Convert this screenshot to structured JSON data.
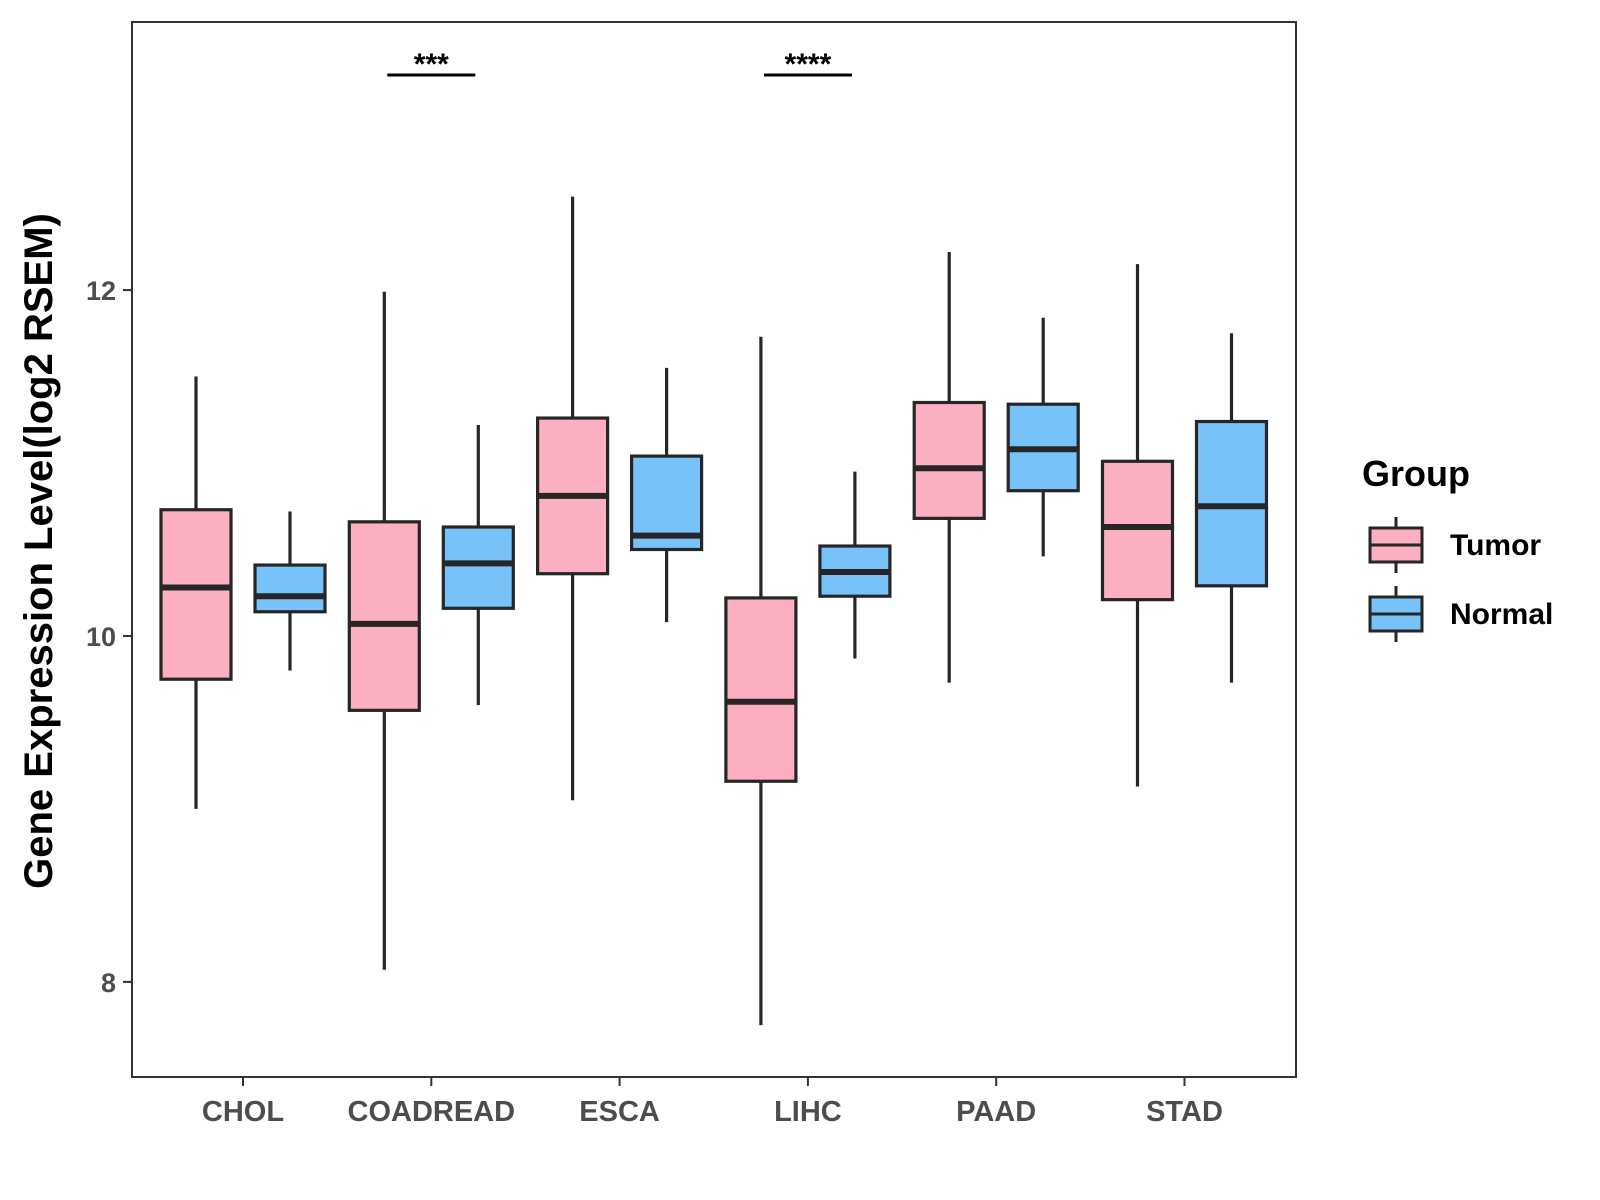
{
  "chart_data": {
    "type": "boxplot",
    "ylabel": "Gene Expression Level(log2 RSEM)",
    "xlabel": "",
    "ylim": [
      7.45,
      13.55
    ],
    "y_ticks": [
      8,
      10,
      12
    ],
    "categories": [
      "CHOL",
      "COADREAD",
      "ESCA",
      "LIHC",
      "PAAD",
      "STAD"
    ],
    "series": [
      {
        "name": "Tumor",
        "color": "#FBAFC0",
        "boxes": [
          {
            "whisker_low": 9.0,
            "q1": 9.75,
            "median": 10.28,
            "q3": 10.73,
            "whisker_high": 11.5
          },
          {
            "whisker_low": 8.07,
            "q1": 9.57,
            "median": 10.07,
            "q3": 10.66,
            "whisker_high": 11.99
          },
          {
            "whisker_low": 9.05,
            "q1": 10.36,
            "median": 10.81,
            "q3": 11.26,
            "whisker_high": 12.54
          },
          {
            "whisker_low": 7.75,
            "q1": 9.16,
            "median": 9.62,
            "q3": 10.22,
            "whisker_high": 11.73
          },
          {
            "whisker_low": 9.73,
            "q1": 10.68,
            "median": 10.97,
            "q3": 11.35,
            "whisker_high": 12.22
          },
          {
            "whisker_low": 9.13,
            "q1": 10.21,
            "median": 10.63,
            "q3": 11.01,
            "whisker_high": 12.15
          }
        ]
      },
      {
        "name": "Normal",
        "color": "#77C2F8",
        "boxes": [
          {
            "whisker_low": 9.8,
            "q1": 10.14,
            "median": 10.23,
            "q3": 10.41,
            "whisker_high": 10.72
          },
          {
            "whisker_low": 9.6,
            "q1": 10.16,
            "median": 10.42,
            "q3": 10.63,
            "whisker_high": 11.22
          },
          {
            "whisker_low": 10.08,
            "q1": 10.5,
            "median": 10.58,
            "q3": 11.04,
            "whisker_high": 11.55
          },
          {
            "whisker_low": 9.87,
            "q1": 10.23,
            "median": 10.37,
            "q3": 10.52,
            "whisker_high": 10.95
          },
          {
            "whisker_low": 10.46,
            "q1": 10.84,
            "median": 11.08,
            "q3": 11.34,
            "whisker_high": 11.84
          },
          {
            "whisker_low": 9.73,
            "q1": 10.29,
            "median": 10.75,
            "q3": 11.24,
            "whisker_high": 11.75
          }
        ]
      }
    ],
    "significance": [
      {
        "category": "COADREAD",
        "label": "***"
      },
      {
        "category": "LIHC",
        "label": "****"
      }
    ],
    "legend": {
      "title": "Group",
      "entries": [
        "Tumor",
        "Normal"
      ],
      "placement": "right"
    },
    "grid": false
  }
}
